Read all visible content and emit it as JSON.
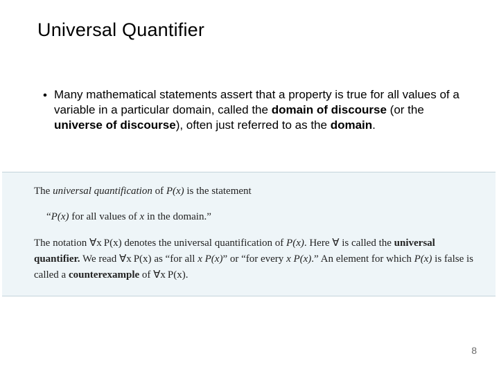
{
  "title": "Universal Quantifier",
  "bullet": {
    "pre": "Many mathematical statements assert that a property is true for all values of a variable in a particular domain, called the ",
    "b1": "domain of discourse",
    "mid1": " (or the ",
    "b2": "universe of discourse",
    "mid2": "), often just referred to as the ",
    "b3": "domain",
    "tail": "."
  },
  "def": {
    "line1_pre": "The ",
    "line1_em": "universal quantification",
    "line1_post": " of ",
    "line1_math": "P(x)",
    "line1_tail": " is the statement",
    "quote_open": "“",
    "quote_math": "P(x)",
    "quote_mid": " for all values of ",
    "quote_var": "x",
    "quote_tail": " in the domain.”",
    "p2_a": "The notation ",
    "p2_uq1": "∀x P(x)",
    "p2_b": " denotes the universal quantification of ",
    "p2_px": "P(x)",
    "p2_c": ". Here ",
    "p2_forall": "∀",
    "p2_d": " is called the ",
    "p2_bold1": "universal quantifier.",
    "p2_e": " We read ",
    "p2_uq2": "∀x P(x)",
    "p2_f": " as “for all ",
    "p2_x1": "x",
    "p2_px2": " P(x)",
    "p2_g": "” or “for every ",
    "p2_x2": "x",
    "p2_px3": " P(x)",
    "p2_h": ".” An element for which ",
    "p2_px4": "P(x)",
    "p2_i": " is false is called a ",
    "p2_bold2": "counterexample",
    "p2_j": " of ",
    "p2_uq3": "∀x P(x)",
    "p2_k": "."
  },
  "page_number": "8",
  "colors": {
    "background": "#ffffff",
    "defbox_bg": "#eef5f8",
    "defbox_border": "#c3d4db",
    "pagenum": "#6b6b6b"
  }
}
